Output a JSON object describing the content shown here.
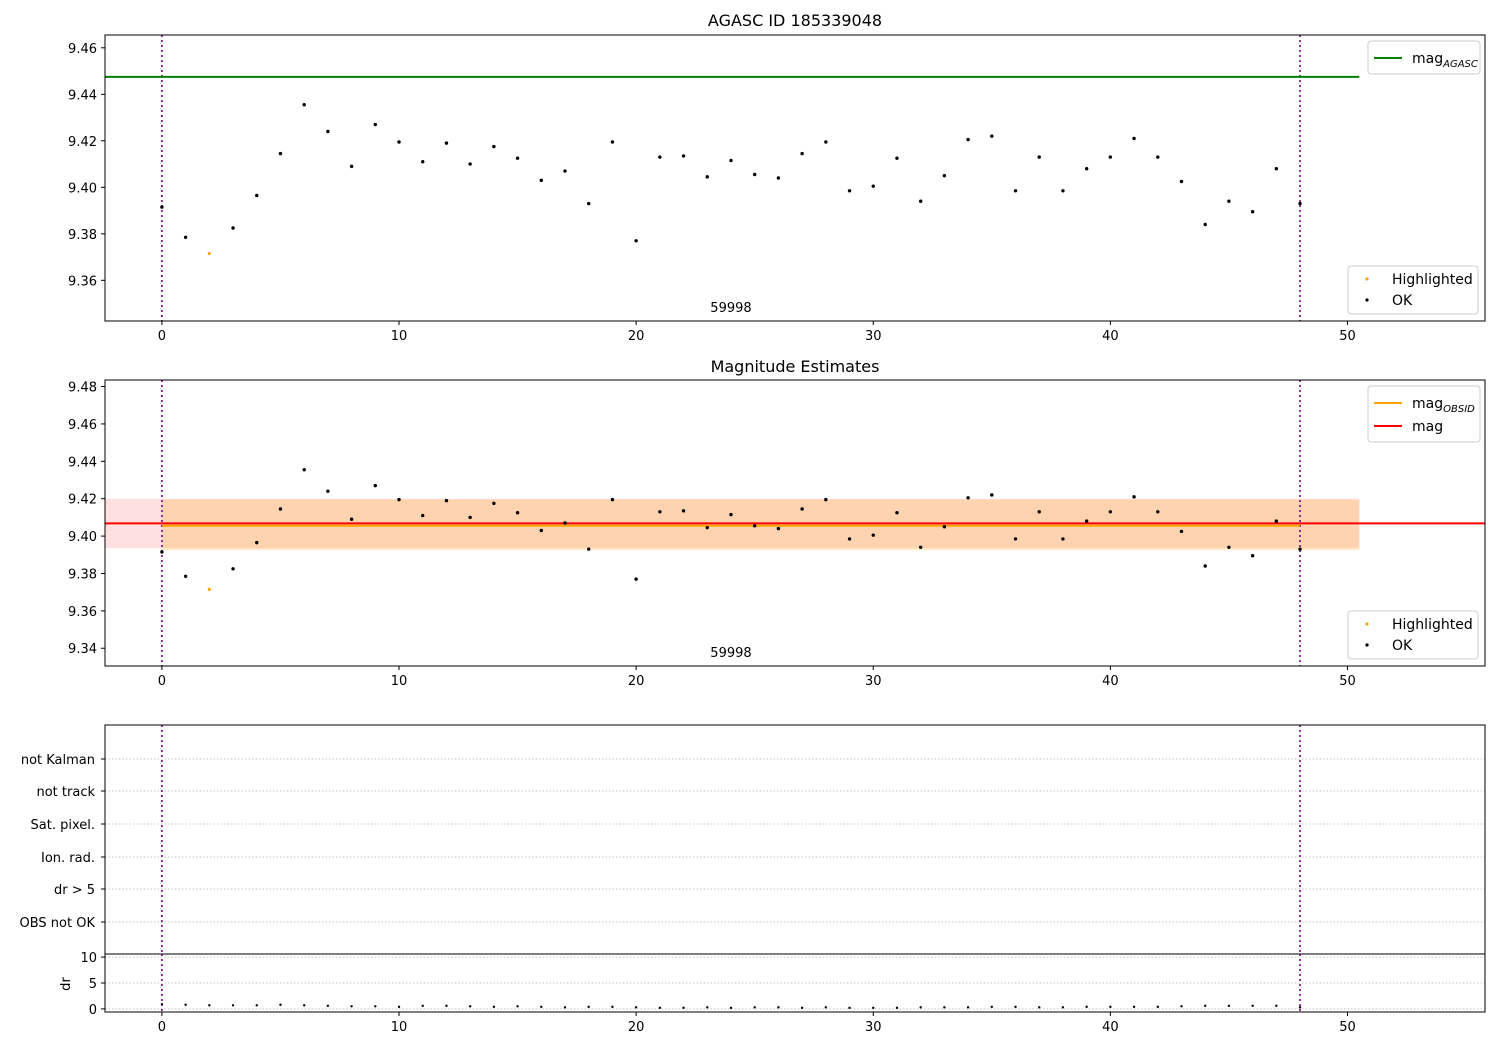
{
  "chart_data": [
    {
      "type": "scatter",
      "title": "AGASC ID 185339048",
      "xlabel": "",
      "ylabel": "",
      "xlim": [
        -2.4,
        55.8
      ],
      "ylim": [
        9.3425,
        9.4655
      ],
      "xticks": [
        0,
        10,
        20,
        30,
        40,
        50
      ],
      "yticks": [
        9.36,
        9.38,
        9.4,
        9.42,
        9.44,
        9.46
      ],
      "grid": false,
      "hline": {
        "name": "mag",
        "sub": "AGASC",
        "y": 9.4475,
        "color": "#008000",
        "x": [
          -2.4,
          50.5
        ]
      },
      "vlines": [
        0,
        48
      ],
      "obsid_label": {
        "text": "59998",
        "x": 24
      },
      "line_legend_placement": "upper-right",
      "point_legend_placement": "lower-right",
      "series": [
        {
          "name": "Highlighted",
          "color": "#ffa500",
          "x": [
            2
          ],
          "y": [
            9.3715
          ]
        },
        {
          "name": "OK",
          "color": "#000000",
          "x": [
            0,
            1,
            3,
            4,
            5,
            6,
            7,
            8,
            9,
            10,
            11,
            12,
            13,
            14,
            15,
            16,
            17,
            18,
            19,
            20,
            21,
            22,
            23,
            24,
            25,
            26,
            27,
            28,
            29,
            30,
            31,
            32,
            33,
            34,
            35,
            36,
            37,
            38,
            39,
            40,
            41,
            42,
            43,
            44,
            45,
            46,
            47,
            48
          ],
          "y": [
            9.3915,
            9.3785,
            9.3825,
            9.3965,
            9.4145,
            9.4355,
            9.424,
            9.409,
            9.427,
            9.4195,
            9.411,
            9.419,
            9.41,
            9.4175,
            9.4125,
            9.403,
            9.407,
            9.393,
            9.4195,
            9.377,
            9.413,
            9.4135,
            9.4045,
            9.4115,
            9.4055,
            9.404,
            9.4145,
            9.4195,
            9.3985,
            9.4005,
            9.4125,
            9.394,
            9.405,
            9.4205,
            9.422,
            9.3985,
            9.413,
            9.3985,
            9.408,
            9.413,
            9.421,
            9.413,
            9.4025,
            9.384,
            9.394,
            9.3895,
            9.408,
            9.393
          ]
        }
      ]
    },
    {
      "type": "scatter",
      "title": "Magnitude Estimates",
      "xlabel": "",
      "ylabel": "",
      "xlim": [
        -2.4,
        55.8
      ],
      "ylim": [
        9.3305,
        9.4835
      ],
      "xticks": [
        0,
        10,
        20,
        30,
        40,
        50
      ],
      "yticks": [
        9.34,
        9.36,
        9.38,
        9.4,
        9.42,
        9.44,
        9.46,
        9.48
      ],
      "grid": false,
      "vlines": [
        0,
        48
      ],
      "obsid_label": {
        "text": "59998",
        "x": 24
      },
      "bands": [
        {
          "y0": 9.3935,
          "y1": 9.42,
          "x0": -2.4,
          "x1": 50.5,
          "color": "#ff0000",
          "opacity": 0.12
        },
        {
          "y0": 9.3925,
          "y1": 9.4195,
          "x0": 0,
          "x1": 50.5,
          "color": "#ffa500",
          "opacity": 0.22
        }
      ],
      "lines": [
        {
          "name": "mag",
          "sub": "OBSID",
          "y": 9.4055,
          "color": "#ffa500",
          "x": [
            0,
            48
          ]
        },
        {
          "name": "mag",
          "sub": "",
          "y": 9.4068,
          "color": "#ff0000",
          "x": [
            -2.4,
            55.8
          ]
        }
      ],
      "line_legend_placement": "upper-right",
      "point_legend_placement": "lower-right",
      "series": [
        {
          "name": "Highlighted",
          "color": "#ffa500",
          "x": [
            2
          ],
          "y": [
            9.3715
          ]
        },
        {
          "name": "OK",
          "color": "#000000",
          "x": [
            0,
            1,
            3,
            4,
            5,
            6,
            7,
            8,
            9,
            10,
            11,
            12,
            13,
            14,
            15,
            16,
            17,
            18,
            19,
            20,
            21,
            22,
            23,
            24,
            25,
            26,
            27,
            28,
            29,
            30,
            31,
            32,
            33,
            34,
            35,
            36,
            37,
            38,
            39,
            40,
            41,
            42,
            43,
            44,
            45,
            46,
            47,
            48
          ],
          "y": [
            9.3915,
            9.3785,
            9.3825,
            9.3965,
            9.4145,
            9.4355,
            9.424,
            9.409,
            9.427,
            9.4195,
            9.411,
            9.419,
            9.41,
            9.4175,
            9.4125,
            9.403,
            9.407,
            9.393,
            9.4195,
            9.377,
            9.413,
            9.4135,
            9.4045,
            9.4115,
            9.4055,
            9.404,
            9.4145,
            9.4195,
            9.3985,
            9.4005,
            9.4125,
            9.394,
            9.405,
            9.4205,
            9.422,
            9.3985,
            9.413,
            9.3985,
            9.408,
            9.413,
            9.421,
            9.413,
            9.4025,
            9.384,
            9.394,
            9.3895,
            9.408,
            9.393
          ]
        }
      ]
    },
    {
      "type": "table",
      "title": "",
      "categories": [
        "not Kalman",
        "not track",
        "Sat. pixel.",
        "Ion. rad.",
        "dr > 5",
        "OBS not OK"
      ],
      "xlim": [
        -2.4,
        55.8
      ],
      "grid": true,
      "vlines": [
        0,
        48
      ]
    },
    {
      "type": "scatter",
      "title": "",
      "xlabel": "",
      "ylabel": "dr",
      "xlim": [
        -2.4,
        55.8
      ],
      "ylim": [
        -0.6,
        10.6
      ],
      "xticks": [
        0,
        10,
        20,
        30,
        40,
        50
      ],
      "yticks": [
        0,
        5,
        10
      ],
      "grid": true,
      "vlines": [
        0,
        48
      ],
      "series": [
        {
          "name": "dr",
          "color": "#000000",
          "x": [
            0,
            1,
            2,
            3,
            4,
            5,
            6,
            7,
            8,
            9,
            10,
            11,
            12,
            13,
            14,
            15,
            16,
            17,
            18,
            19,
            20,
            21,
            22,
            23,
            24,
            25,
            26,
            27,
            28,
            29,
            30,
            31,
            32,
            33,
            34,
            35,
            36,
            37,
            38,
            39,
            40,
            41,
            42,
            43,
            44,
            45,
            46,
            47,
            48
          ],
          "y": [
            0.9,
            0.8,
            0.7,
            0.7,
            0.7,
            0.8,
            0.7,
            0.6,
            0.5,
            0.5,
            0.4,
            0.6,
            0.6,
            0.5,
            0.4,
            0.5,
            0.4,
            0.3,
            0.4,
            0.4,
            0.3,
            0.2,
            0.2,
            0.3,
            0.2,
            0.3,
            0.3,
            0.2,
            0.3,
            0.2,
            0.2,
            0.2,
            0.3,
            0.3,
            0.3,
            0.4,
            0.4,
            0.3,
            0.3,
            0.4,
            0.4,
            0.4,
            0.4,
            0.5,
            0.6,
            0.6,
            0.6,
            0.6,
            0.3
          ]
        }
      ]
    }
  ]
}
